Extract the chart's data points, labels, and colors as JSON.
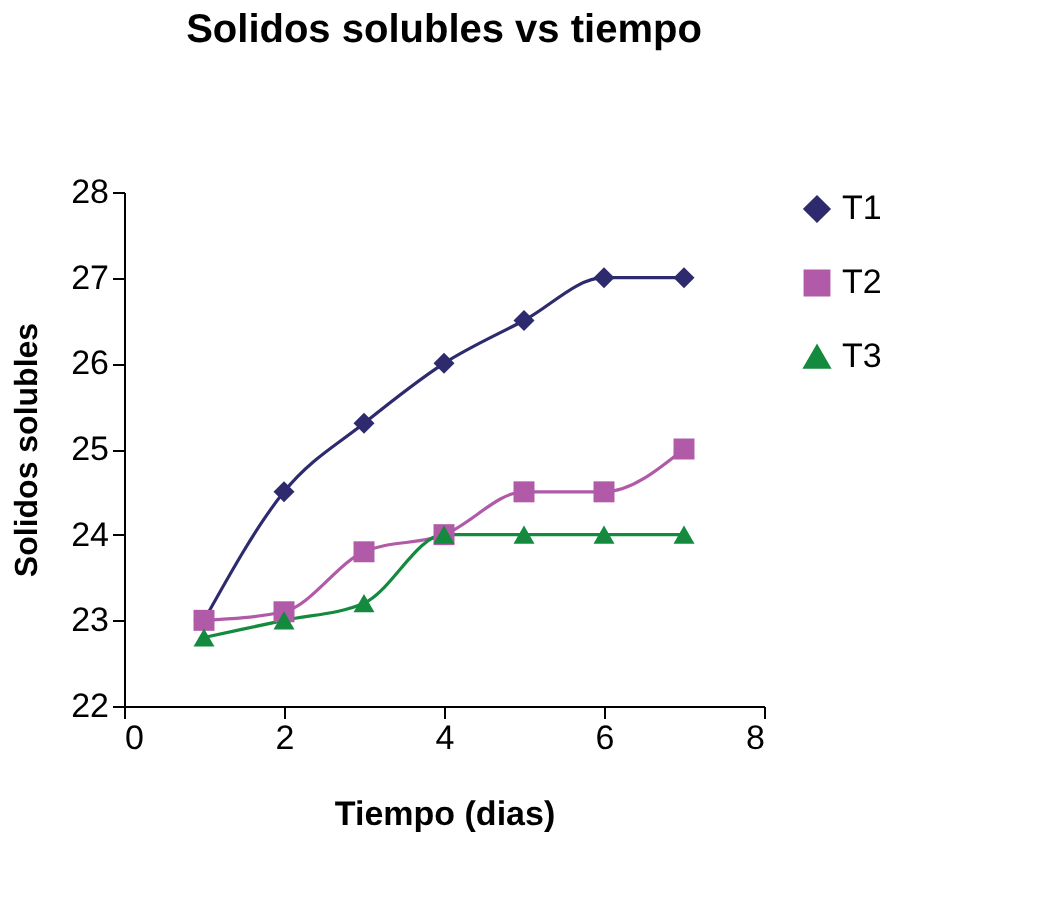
{
  "chart_data": {
    "type": "line",
    "title": "Solidos solubles vs tiempo",
    "xlabel": "Tiempo (dias)",
    "ylabel": "Solidos solubles",
    "x": [
      1,
      2,
      3,
      4,
      5,
      6,
      7
    ],
    "series": [
      {
        "name": "T1",
        "color": "#2e2a6e",
        "marker": "diamond",
        "values": [
          23,
          24.5,
          25.3,
          26,
          26.5,
          27,
          27
        ]
      },
      {
        "name": "T2",
        "color": "#b05aa8",
        "marker": "square",
        "values": [
          23,
          23.1,
          23.8,
          24,
          24.5,
          24.5,
          25
        ]
      },
      {
        "name": "T3",
        "color": "#138a3e",
        "marker": "triangle",
        "values": [
          22.8,
          23,
          23.2,
          24,
          24,
          24,
          24
        ]
      }
    ],
    "xlim": [
      0,
      8
    ],
    "xticks": [
      0,
      2,
      4,
      6,
      8
    ],
    "ylim": [
      22,
      28
    ],
    "yticks": [
      22,
      23,
      24,
      25,
      26,
      27,
      28
    ],
    "grid": false,
    "legend": "right",
    "line_style": "solid"
  }
}
